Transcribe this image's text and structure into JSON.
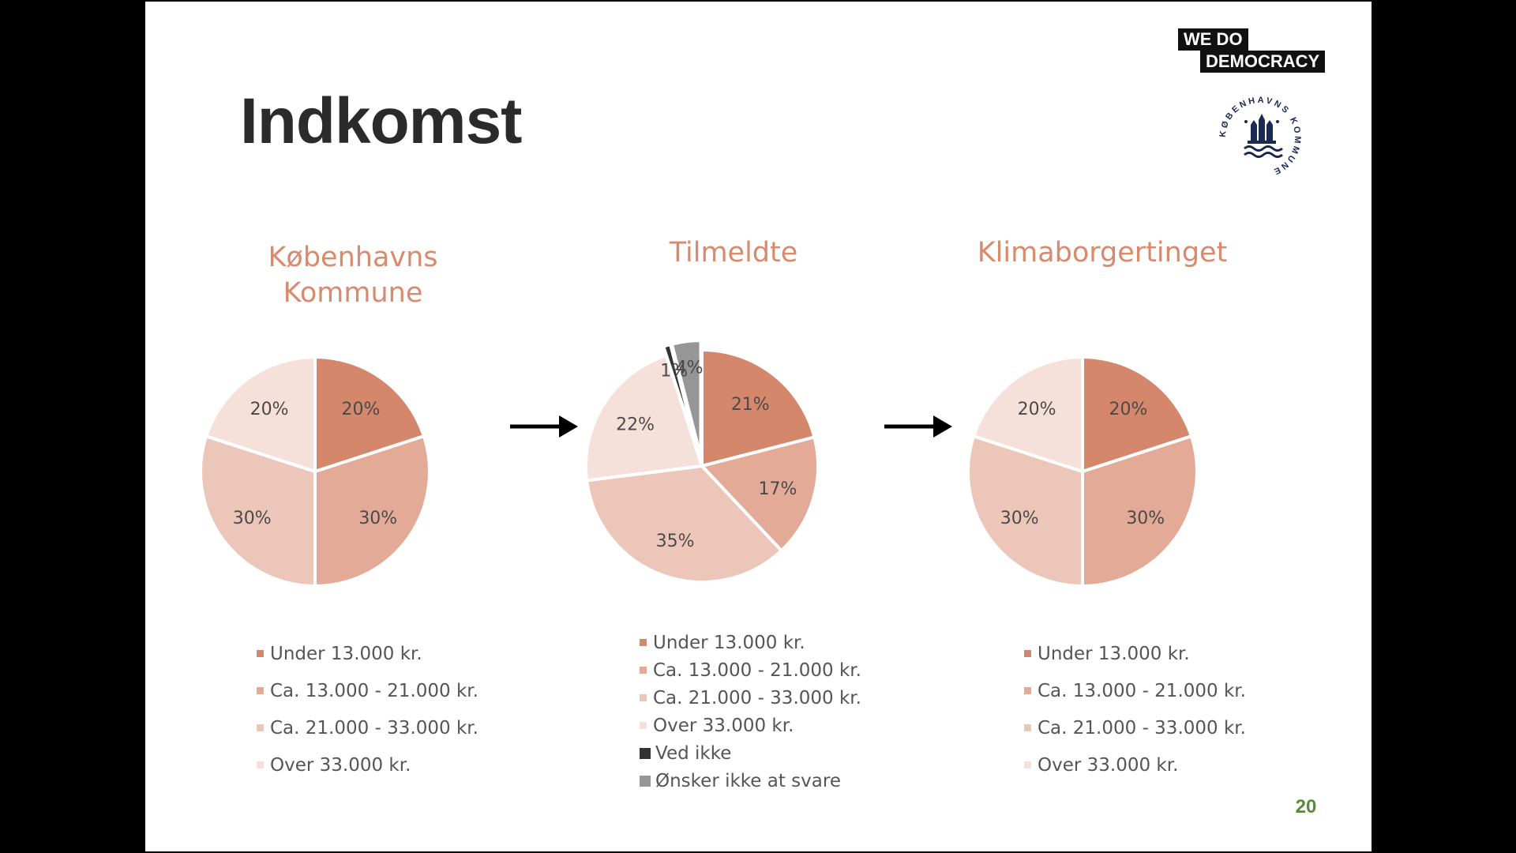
{
  "slide": {
    "title": "Indkomst",
    "page_number": "20",
    "logo_wdd": {
      "line1": "WE  DO",
      "line2": "DEMOCRACY"
    },
    "logo_kk": {
      "text": "KØBENHAVNS KOMMUNE"
    }
  },
  "colors": {
    "under_13000": "#d4876b",
    "c13_21": "#e3aa97",
    "c21_33": "#ecc6b9",
    "over_33000": "#f5e1da",
    "ved_ikke": "#333333",
    "onsker_ikke": "#969696",
    "title_accent": "#d98a6c"
  },
  "chart_data": [
    {
      "type": "pie",
      "title": "Københavns Kommune",
      "title_lines": [
        "Københavns",
        "Kommune"
      ],
      "legend_position": "bottom",
      "slices": [
        {
          "label": "Under 13.000 kr.",
          "value": 20,
          "value_label": "20%",
          "color_key": "under_13000"
        },
        {
          "label": "Ca. 13.000 - 21.000 kr.",
          "value": 30,
          "value_label": "30%",
          "color_key": "c13_21"
        },
        {
          "label": "Ca. 21.000 - 33.000 kr.",
          "value": 30,
          "value_label": "30%",
          "color_key": "c21_33"
        },
        {
          "label": "Over 33.000 kr.",
          "value": 20,
          "value_label": "20%",
          "color_key": "over_33000"
        }
      ]
    },
    {
      "type": "pie",
      "title": "Tilmeldte",
      "title_lines": [
        "Tilmeldte"
      ],
      "legend_position": "bottom",
      "slices": [
        {
          "label": "Under 13.000 kr.",
          "value": 21,
          "value_label": "21%",
          "color_key": "under_13000"
        },
        {
          "label": "Ca. 13.000 - 21.000 kr.",
          "value": 17,
          "value_label": "17%",
          "color_key": "c13_21"
        },
        {
          "label": "Ca. 21.000 - 33.000 kr.",
          "value": 35,
          "value_label": "35%",
          "color_key": "c21_33"
        },
        {
          "label": "Over 33.000 kr.",
          "value": 22,
          "value_label": "22%",
          "color_key": "over_33000"
        },
        {
          "label": "Ved ikke",
          "value": 1,
          "value_label": "1%",
          "color_key": "ved_ikke"
        },
        {
          "label": "Ønsker ikke at svare",
          "value": 4,
          "value_label": "4%",
          "color_key": "onsker_ikke"
        }
      ]
    },
    {
      "type": "pie",
      "title": "Klimaborgertinget",
      "title_lines": [
        "Klimaborgertinget"
      ],
      "legend_position": "bottom",
      "slices": [
        {
          "label": "Under 13.000 kr.",
          "value": 20,
          "value_label": "20%",
          "color_key": "under_13000"
        },
        {
          "label": "Ca. 13.000 - 21.000 kr.",
          "value": 30,
          "value_label": "30%",
          "color_key": "c13_21"
        },
        {
          "label": "Ca. 21.000 - 33.000 kr.",
          "value": 30,
          "value_label": "30%",
          "color_key": "c21_33"
        },
        {
          "label": "Over 33.000 kr.",
          "value": 20,
          "value_label": "20%",
          "color_key": "over_33000"
        }
      ]
    }
  ]
}
